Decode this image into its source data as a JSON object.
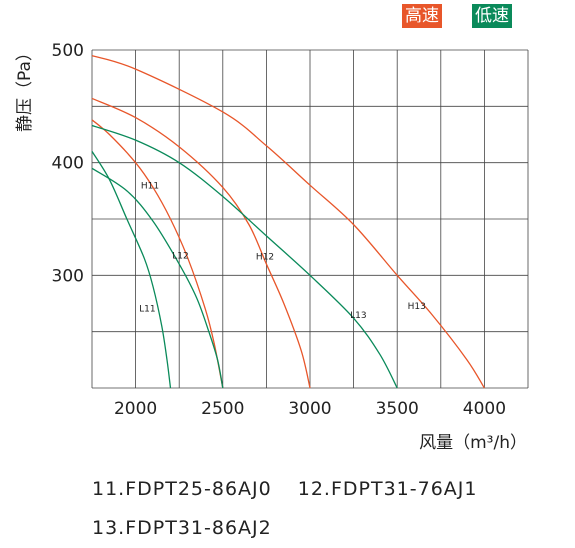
{
  "legend": [
    {
      "label": "高速",
      "color": "#e8562a"
    },
    {
      "label": "低速",
      "color": "#0a8a5a"
    }
  ],
  "models": [
    "11.FDPT25-86AJ0",
    "12.FDPT31-76AJ1",
    "13.FDPT31-86AJ2"
  ],
  "chart_data": {
    "type": "line",
    "ylabel": "静压（Pa）",
    "xlabel": "风量（m³/h）",
    "xlim": [
      1750,
      4250
    ],
    "ylim": [
      200,
      500
    ],
    "xticks": [
      2000,
      2500,
      3000,
      3500,
      4000
    ],
    "yticks": [
      300,
      400,
      500
    ],
    "grid": true,
    "series": [
      {
        "name": "H11",
        "speed": "high",
        "color": "#e8562a",
        "points": [
          [
            1750,
            438
          ],
          [
            1850,
            425
          ],
          [
            2000,
            400
          ],
          [
            2100,
            378
          ],
          [
            2200,
            350
          ],
          [
            2300,
            315
          ],
          [
            2400,
            270
          ],
          [
            2450,
            240
          ],
          [
            2500,
            200
          ]
        ]
      },
      {
        "name": "L11",
        "speed": "low",
        "color": "#0a8a5a",
        "points": [
          [
            1750,
            410
          ],
          [
            1850,
            385
          ],
          [
            1950,
            350
          ],
          [
            2050,
            315
          ],
          [
            2100,
            290
          ],
          [
            2150,
            255
          ],
          [
            2180,
            225
          ],
          [
            2200,
            200
          ]
        ]
      },
      {
        "name": "H12",
        "speed": "high",
        "color": "#e8562a",
        "points": [
          [
            1750,
            457
          ],
          [
            2000,
            440
          ],
          [
            2250,
            414
          ],
          [
            2500,
            378
          ],
          [
            2650,
            345
          ],
          [
            2750,
            310
          ],
          [
            2850,
            275
          ],
          [
            2950,
            233
          ],
          [
            3000,
            200
          ]
        ]
      },
      {
        "name": "L12",
        "speed": "low",
        "color": "#0a8a5a",
        "points": [
          [
            1750,
            395
          ],
          [
            1950,
            375
          ],
          [
            2100,
            348
          ],
          [
            2250,
            310
          ],
          [
            2350,
            280
          ],
          [
            2420,
            250
          ],
          [
            2470,
            225
          ],
          [
            2500,
            200
          ]
        ]
      },
      {
        "name": "H13",
        "speed": "high",
        "color": "#e8562a",
        "points": [
          [
            1750,
            495
          ],
          [
            2000,
            483
          ],
          [
            2500,
            445
          ],
          [
            2750,
            415
          ],
          [
            3000,
            380
          ],
          [
            3250,
            345
          ],
          [
            3500,
            300
          ],
          [
            3700,
            265
          ],
          [
            3900,
            225
          ],
          [
            4000,
            200
          ]
        ]
      },
      {
        "name": "L13",
        "speed": "low",
        "color": "#0a8a5a",
        "points": [
          [
            1750,
            433
          ],
          [
            2000,
            420
          ],
          [
            2250,
            400
          ],
          [
            2500,
            370
          ],
          [
            2750,
            335
          ],
          [
            3000,
            300
          ],
          [
            3250,
            262
          ],
          [
            3400,
            230
          ],
          [
            3500,
            200
          ]
        ]
      }
    ],
    "annotations": [
      {
        "text": "H11",
        "x": 2030,
        "y": 377
      },
      {
        "text": "L11",
        "x": 2020,
        "y": 268
      },
      {
        "text": "H12",
        "x": 2690,
        "y": 314
      },
      {
        "text": "L12",
        "x": 2210,
        "y": 315
      },
      {
        "text": "H13",
        "x": 3560,
        "y": 270
      },
      {
        "text": "L13",
        "x": 3230,
        "y": 262
      }
    ]
  }
}
